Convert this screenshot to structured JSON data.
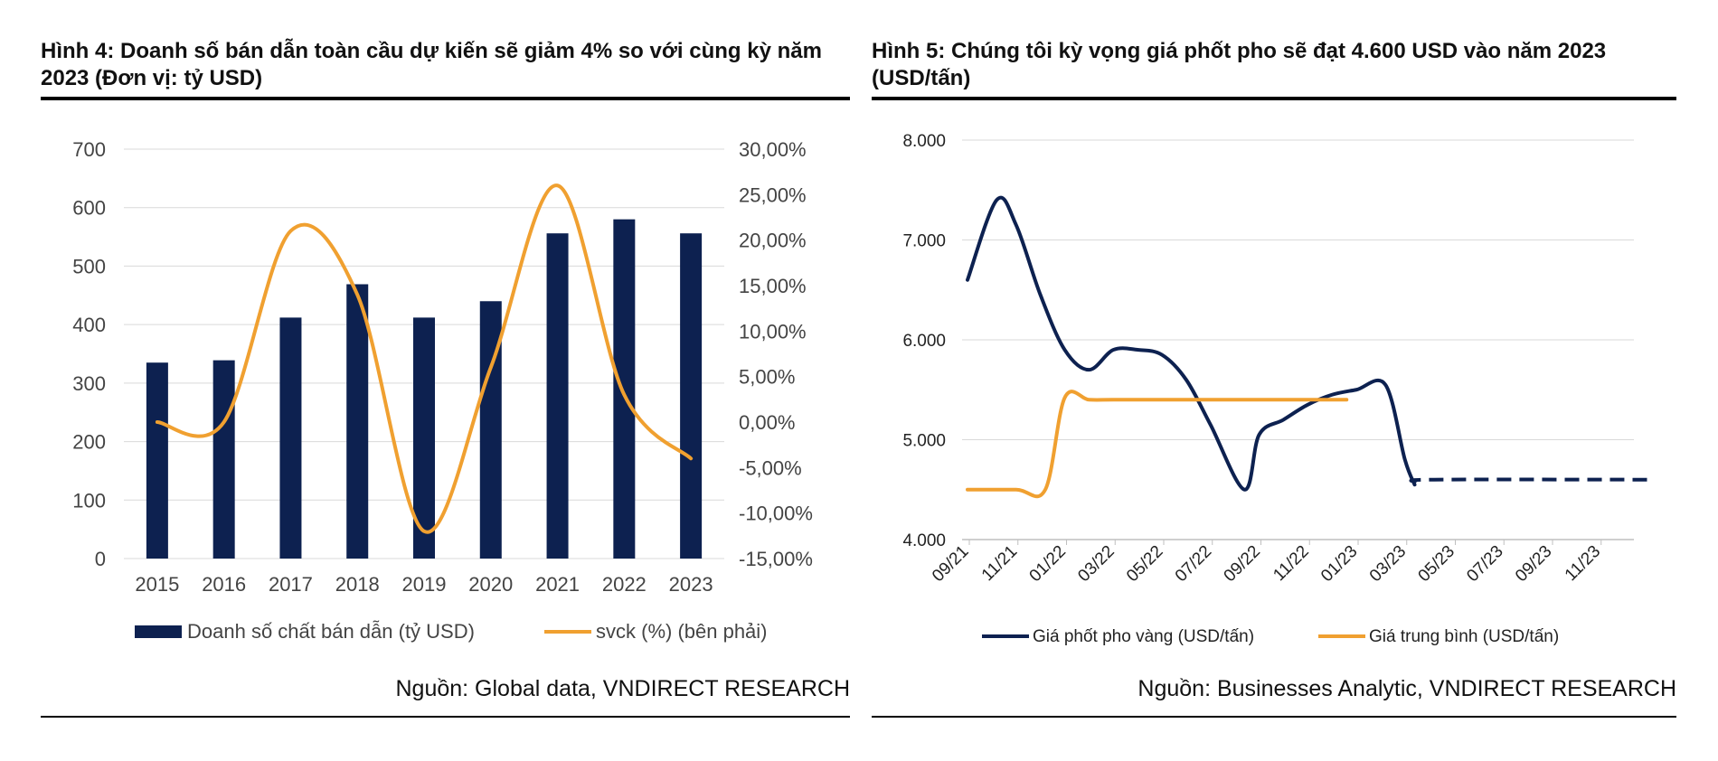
{
  "chart_data": [
    {
      "type": "bar+line",
      "title": "Hình 4: Doanh số bán dẫn toàn cầu dự kiến sẽ giảm 4% so với cùng kỳ năm 2023 (Đơn vị: tỷ USD)",
      "categories": [
        "2015",
        "2016",
        "2017",
        "2018",
        "2019",
        "2020",
        "2021",
        "2022",
        "2023"
      ],
      "series": [
        {
          "name": "Doanh số chất bán dẫn (tỷ USD)",
          "type": "bar",
          "axis": "left",
          "color": "#0d2150",
          "values": [
            335,
            339,
            412,
            469,
            412,
            440,
            556,
            580,
            556
          ]
        },
        {
          "name": "svck (%) (bên phải)",
          "type": "line",
          "axis": "right",
          "color": "#f0a030",
          "values": [
            0.0,
            0.0,
            21.0,
            14.0,
            -12.0,
            6.0,
            26.0,
            3.0,
            -4.0
          ]
        }
      ],
      "left_axis": {
        "min": 0,
        "max": 700,
        "ticks": [
          "0",
          "100",
          "200",
          "300",
          "400",
          "500",
          "600",
          "700"
        ]
      },
      "right_axis": {
        "min": -15,
        "max": 30,
        "ticks": [
          "-15,00%",
          "-10,00%",
          "-5,00%",
          "0,00%",
          "5,00%",
          "10,00%",
          "15,00%",
          "20,00%",
          "25,00%",
          "30,00%"
        ]
      },
      "grid": true,
      "legend": "bottom",
      "source": "Nguồn: Global data, VNDIRECT RESEARCH"
    },
    {
      "type": "line",
      "title": "Hình 5: Chúng tôi kỳ vọng giá phốt pho sẽ đạt 4.600 USD vào năm 2023 (USD/tấn)",
      "x_labels": [
        "09/21",
        "11/21",
        "01/22",
        "03/22",
        "05/22",
        "07/22",
        "09/22",
        "11/22",
        "01/23",
        "03/23",
        "05/23",
        "07/23",
        "09/23",
        "11/23"
      ],
      "y_axis": {
        "min": 4000,
        "max": 8000,
        "ticks": [
          "4.000",
          "5.000",
          "6.000",
          "7.000",
          "8.000"
        ]
      },
      "series": [
        {
          "name": "Giá phốt pho vàng (USD/tấn)",
          "color": "#0d2150",
          "points": [
            [
              0,
              6600
            ],
            [
              0.6,
              7400
            ],
            [
              1,
              7150
            ],
            [
              1.5,
              6450
            ],
            [
              2,
              5900
            ],
            [
              2.5,
              5700
            ],
            [
              3,
              5900
            ],
            [
              3.5,
              5900
            ],
            [
              4,
              5850
            ],
            [
              4.5,
              5600
            ],
            [
              5,
              5150
            ],
            [
              5.7,
              4500
            ],
            [
              6,
              5050
            ],
            [
              6.5,
              5200
            ],
            [
              7,
              5350
            ],
            [
              7.5,
              5450
            ],
            [
              8,
              5500
            ],
            [
              8.6,
              5550
            ],
            [
              9,
              4800
            ],
            [
              9.2,
              4550
            ]
          ],
          "forecast_points": [
            [
              9.2,
              4580
            ],
            [
              9.6,
              4600
            ],
            [
              14,
              4600
            ]
          ]
        },
        {
          "name": "Giá trung bình (USD/tấn)",
          "color": "#f0a030",
          "points": [
            [
              0,
              4500
            ],
            [
              1,
              4500
            ],
            [
              1.6,
              4500
            ],
            [
              2,
              5420
            ],
            [
              2.5,
              5400
            ],
            [
              3,
              5400
            ],
            [
              4,
              5400
            ],
            [
              5,
              5400
            ],
            [
              6,
              5400
            ],
            [
              7,
              5400
            ],
            [
              7.8,
              5400
            ]
          ]
        }
      ],
      "grid": true,
      "legend": "bottom",
      "source": "Nguồn: Businesses Analytic, VNDIRECT RESEARCH"
    }
  ]
}
